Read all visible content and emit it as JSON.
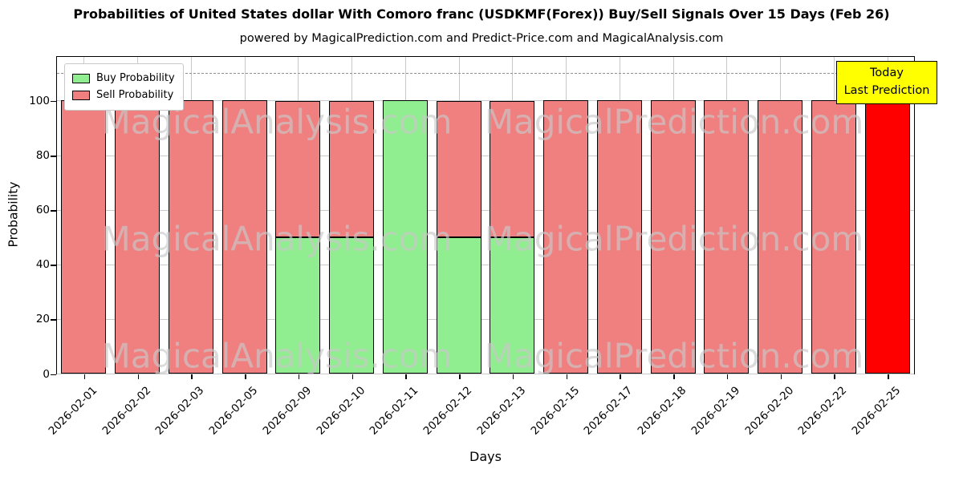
{
  "chart_data": {
    "type": "bar",
    "stacked": true,
    "title": "Probabilities of United States dollar With Comoro franc (USDKMF(Forex)) Buy/Sell Signals Over 15 Days (Feb 26)",
    "subtitle": "powered by MagicalPrediction.com and Predict-Price.com and MagicalAnalysis.com",
    "xlabel": "Days",
    "ylabel": "Probability",
    "ylim": [
      0,
      116
    ],
    "yticks": [
      0,
      20,
      40,
      60,
      80,
      100
    ],
    "grid": true,
    "legend_position": "upper left",
    "dashed_line_y": 110,
    "categories": [
      "2026-02-01",
      "2026-02-02",
      "2026-02-03",
      "2026-02-05",
      "2026-02-09",
      "2026-02-10",
      "2026-02-11",
      "2026-02-12",
      "2026-02-13",
      "2026-02-15",
      "2026-02-17",
      "2026-02-18",
      "2026-02-19",
      "2026-02-20",
      "2026-02-22",
      "2026-02-25"
    ],
    "series": [
      {
        "name": "Buy Probability",
        "color": "#90ee90",
        "values": [
          0,
          0,
          0,
          0,
          50,
          50,
          100,
          50,
          50,
          0,
          0,
          0,
          0,
          0,
          0,
          0
        ]
      },
      {
        "name": "Sell Probability",
        "color": "#f08080",
        "values": [
          100,
          100,
          100,
          100,
          50,
          50,
          0,
          50,
          50,
          100,
          100,
          100,
          100,
          100,
          100,
          100
        ]
      }
    ],
    "last_bar": {
      "category": "2026-02-25",
      "color": "#ff0000",
      "annotation_bg": "#ffff00",
      "label_line1": "Today",
      "label_line2": "Last Prediction"
    },
    "watermarks": [
      "MagicalAnalysis.com",
      "MagicalPrediction.com"
    ]
  }
}
